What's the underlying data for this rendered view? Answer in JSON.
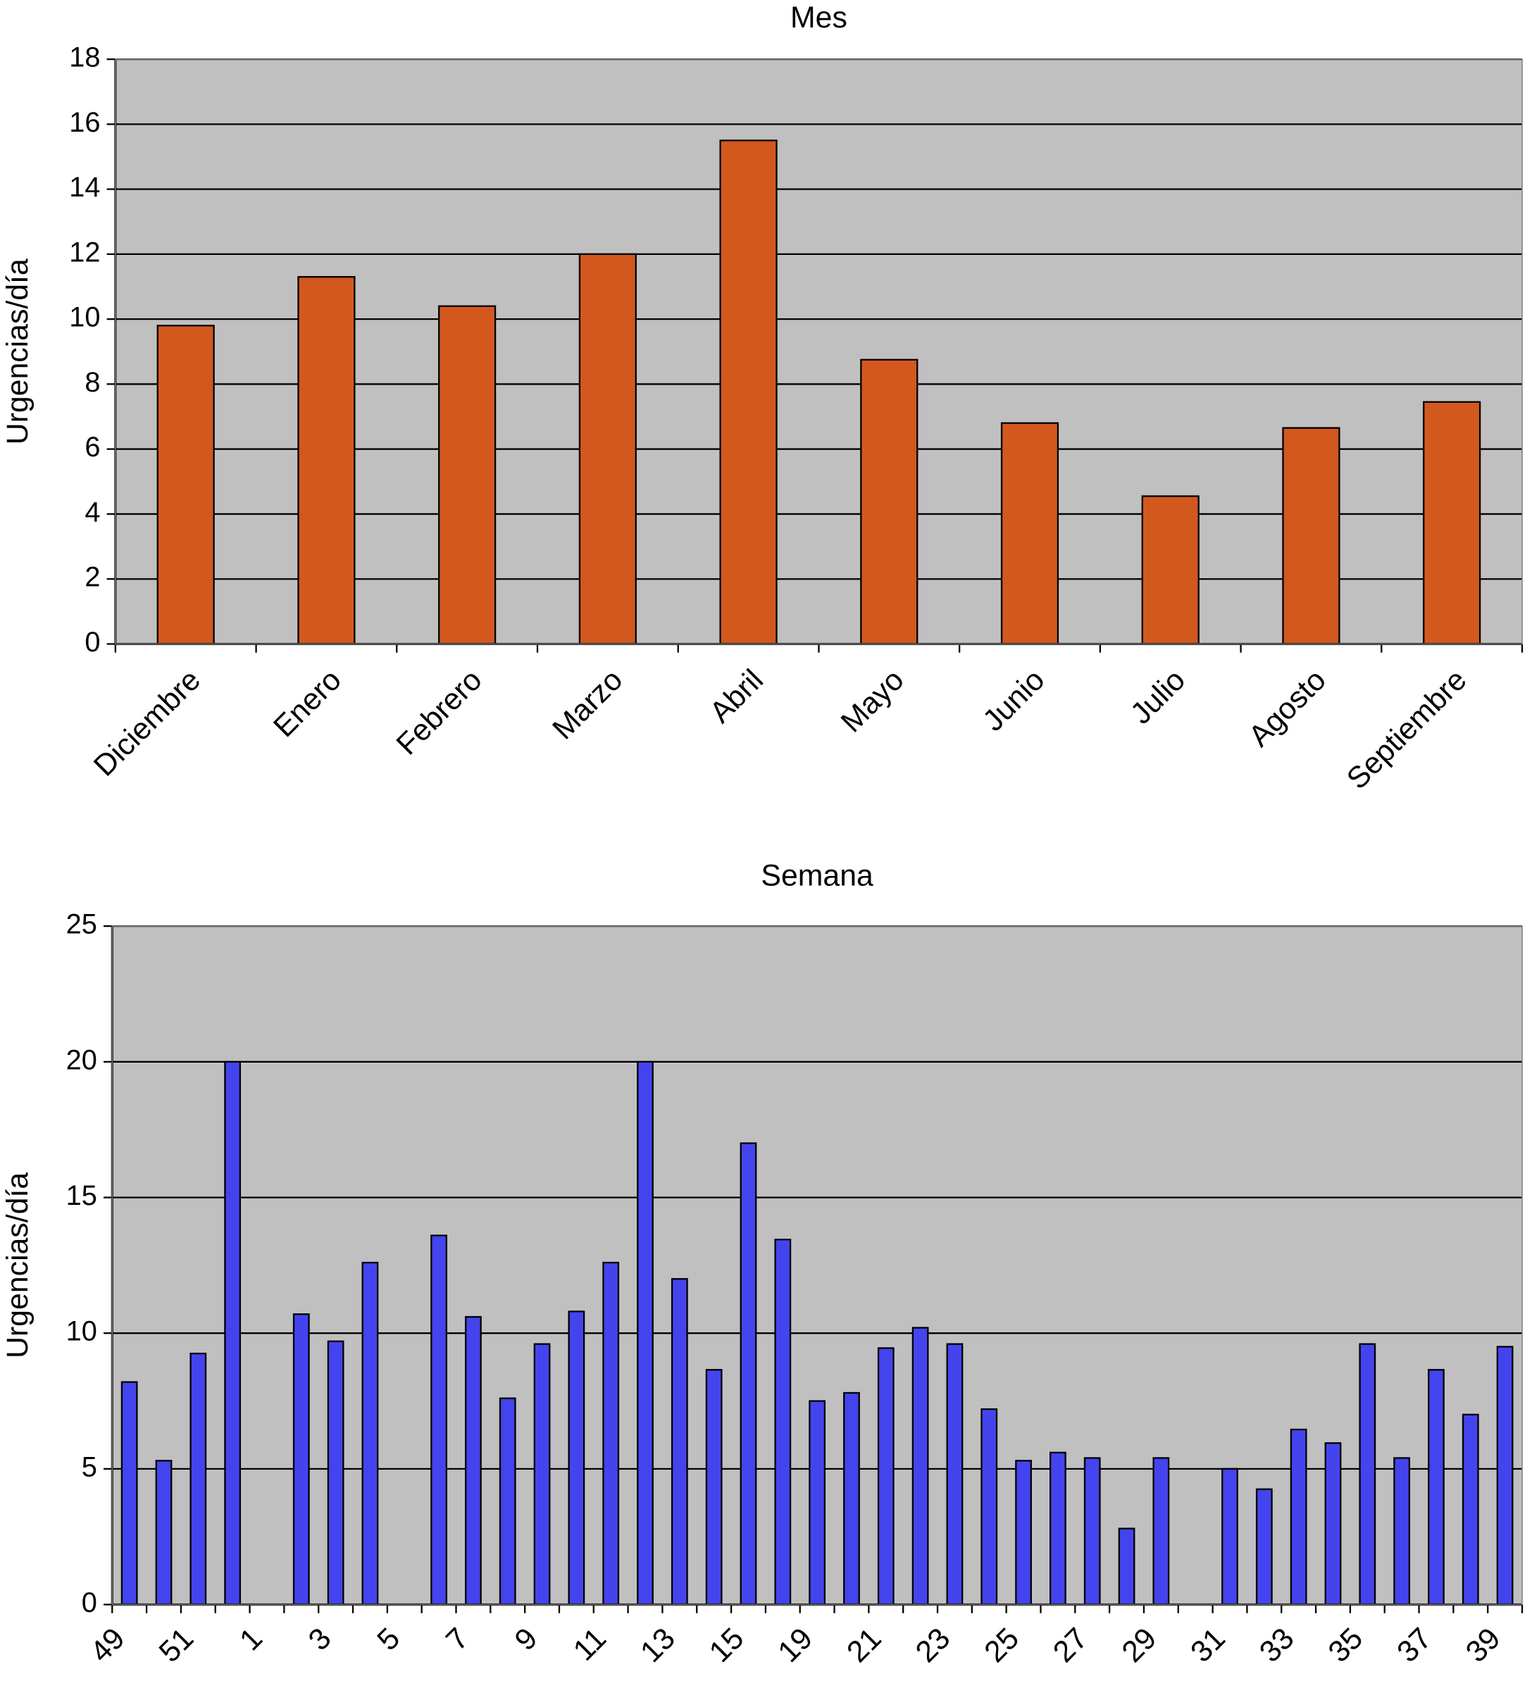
{
  "chart_data": [
    {
      "type": "bar",
      "title": "Mes",
      "y_label": "Urgencias/día",
      "categories": [
        "Diciembre",
        "Enero",
        "Febrero",
        "Marzo",
        "Abril",
        "Mayo",
        "Junio",
        "Julio",
        "Agosto",
        "Septiembre"
      ],
      "values": [
        9.8,
        11.3,
        10.4,
        12,
        15.5,
        8.75,
        6.8,
        4.55,
        6.65,
        7.45
      ],
      "color": "#d2581e",
      "ylim": [
        0,
        18
      ],
      "yticks": [
        0,
        2,
        4,
        6,
        8,
        10,
        12,
        14,
        16,
        18
      ],
      "grid": true
    },
    {
      "type": "bar",
      "title": "Semana",
      "y_label": "Urgencias/día",
      "categories": [
        "49",
        null,
        "51",
        null,
        "1",
        null,
        "3",
        null,
        "5",
        null,
        "7",
        null,
        "9",
        null,
        "11",
        null,
        "13",
        null,
        "15",
        null,
        "19",
        null,
        "21",
        null,
        "23",
        null,
        "25",
        null,
        "27",
        null,
        "29",
        null,
        "31",
        null,
        "33",
        null,
        "35",
        null,
        "37",
        null,
        "39"
      ],
      "values": [
        8.2,
        5.3,
        9.25,
        20,
        null,
        10.7,
        9.7,
        12.6,
        null,
        13.6,
        10.6,
        7.6,
        9.6,
        10.8,
        12.6,
        20,
        12.0,
        8.65,
        17.0,
        13.45,
        7.5,
        7.8,
        9.45,
        10.2,
        9.6,
        7.2,
        5.3,
        5.6,
        5.4,
        2.8,
        5.4,
        null,
        5.0,
        4.25,
        6.45,
        5.95,
        9.6,
        5.4,
        8.65,
        7.0,
        9.5
      ],
      "color": "#4444ee",
      "ylim": [
        0,
        25
      ],
      "yticks": [
        0,
        5,
        10,
        15,
        20,
        25
      ],
      "grid": true
    }
  ]
}
